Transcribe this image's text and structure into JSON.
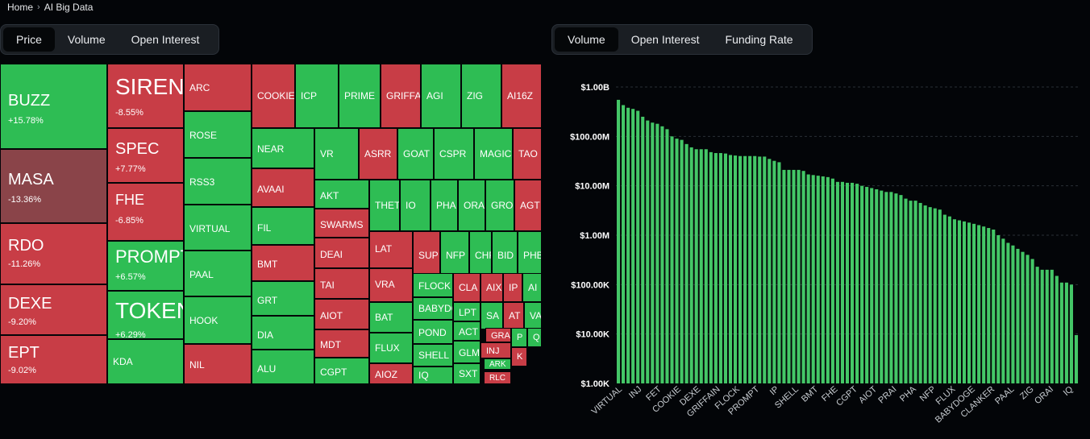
{
  "breadcrumb": {
    "home": "Home",
    "separator": "›",
    "current": "AI Big Data"
  },
  "heatmap_tabs": [
    "Price",
    "Volume",
    "Open Interest"
  ],
  "heatmap_active": 0,
  "chart_tabs": [
    "Volume",
    "Open Interest",
    "Funding Rate"
  ],
  "chart_active": 0,
  "colors": {
    "up": "#2ebd54",
    "down": "#c83d46",
    "down_strong": "#8a4449",
    "bar": "#44c767",
    "background": "#030508"
  },
  "heatmap_tiles": [
    {
      "symbol": "BUZZ",
      "change": "+15.78%"
    },
    {
      "symbol": "MASA",
      "change": "-13.36%"
    },
    {
      "symbol": "RDO",
      "change": "-11.26%"
    },
    {
      "symbol": "DEXE",
      "change": "-9.20%"
    },
    {
      "symbol": "EPT",
      "change": "-9.02%"
    },
    {
      "symbol": "SIREN",
      "change": "-8.55%"
    },
    {
      "symbol": "SPEC",
      "change": "+7.77%"
    },
    {
      "symbol": "FHE",
      "change": "-6.85%"
    },
    {
      "symbol": "PROMPT",
      "change": "+6.57%"
    },
    {
      "symbol": "TOKEN",
      "change": "+6.29%"
    },
    {
      "symbol": "KDA"
    },
    {
      "symbol": "ARC"
    },
    {
      "symbol": "ROSE"
    },
    {
      "symbol": "RSS3"
    },
    {
      "symbol": "VIRTUAL"
    },
    {
      "symbol": "PAAL"
    },
    {
      "symbol": "HOOK"
    },
    {
      "symbol": "NIL"
    },
    {
      "symbol": "COOKIE"
    },
    {
      "symbol": "ICP"
    },
    {
      "symbol": "PRIME"
    },
    {
      "symbol": "GRIFFAIN"
    },
    {
      "symbol": "AGI"
    },
    {
      "symbol": "ZIG"
    },
    {
      "symbol": "AI16Z"
    },
    {
      "symbol": "NEAR"
    },
    {
      "symbol": "AVAAI"
    },
    {
      "symbol": "FIL"
    },
    {
      "symbol": "BMT"
    },
    {
      "symbol": "GRT"
    },
    {
      "symbol": "DIA"
    },
    {
      "symbol": "ALU"
    },
    {
      "symbol": "VR"
    },
    {
      "symbol": "ASRR"
    },
    {
      "symbol": "GOAT"
    },
    {
      "symbol": "CSPR"
    },
    {
      "symbol": "MAGIC"
    },
    {
      "symbol": "TAO"
    },
    {
      "symbol": "AKT"
    },
    {
      "symbol": "SWARMS"
    },
    {
      "symbol": "DEAI"
    },
    {
      "symbol": "TAI"
    },
    {
      "symbol": "AIOT"
    },
    {
      "symbol": "MDT"
    },
    {
      "symbol": "CGPT"
    },
    {
      "symbol": "THETA"
    },
    {
      "symbol": "IO"
    },
    {
      "symbol": "PHA"
    },
    {
      "symbol": "ORAI"
    },
    {
      "symbol": "GRO"
    },
    {
      "symbol": "AGT"
    },
    {
      "symbol": "LAT"
    },
    {
      "symbol": "VRA"
    },
    {
      "symbol": "BAT"
    },
    {
      "symbol": "FLUX"
    },
    {
      "symbol": "AIOZ"
    },
    {
      "symbol": "SUP"
    },
    {
      "symbol": "NFP"
    },
    {
      "symbol": "CHR"
    },
    {
      "symbol": "BID"
    },
    {
      "symbol": "PHB"
    },
    {
      "symbol": "FLOCK"
    },
    {
      "symbol": "BABYDOGE"
    },
    {
      "symbol": "POND"
    },
    {
      "symbol": "SHELL"
    },
    {
      "symbol": "IQ"
    },
    {
      "symbol": "CLA"
    },
    {
      "symbol": "AIX"
    },
    {
      "symbol": "IP"
    },
    {
      "symbol": "AI"
    },
    {
      "symbol": "LPT"
    },
    {
      "symbol": "ACT"
    },
    {
      "symbol": "GLM"
    },
    {
      "symbol": "SXT"
    },
    {
      "symbol": "SA"
    },
    {
      "symbol": "AT"
    },
    {
      "symbol": "VA"
    },
    {
      "symbol": "GRA"
    },
    {
      "symbol": "INJ"
    },
    {
      "symbol": "ARK"
    },
    {
      "symbol": "RLC"
    },
    {
      "symbol": "P"
    },
    {
      "symbol": "Q"
    },
    {
      "symbol": "K"
    }
  ],
  "chart_data": {
    "type": "bar",
    "scale": "log",
    "ylim": [
      1000,
      1000000000
    ],
    "yticks": [
      "$1.00B",
      "$100.00M",
      "$10.00M",
      "$1.00M",
      "$100.00K",
      "$10.00K",
      "$1.00K"
    ],
    "xtick_labels": [
      "VIRTUAL",
      "INJ",
      "FET",
      "COOKIE",
      "DEXE",
      "GRIFFAIN",
      "FLOCK",
      "PROMPT",
      "IP",
      "SHELL",
      "BMT",
      "FHE",
      "CGPT",
      "AIOT",
      "PRAI",
      "PHA",
      "NFP",
      "FLUX",
      "BABYDOGE",
      "CLANKER",
      "PAAL",
      "ZIG",
      "ORAI",
      "IQ"
    ],
    "values": [
      550000000,
      430000000,
      380000000,
      360000000,
      330000000,
      250000000,
      210000000,
      190000000,
      180000000,
      160000000,
      140000000,
      100000000,
      90000000,
      85000000,
      70000000,
      60000000,
      55000000,
      55000000,
      55000000,
      48000000,
      46000000,
      46000000,
      45000000,
      42000000,
      41000000,
      40000000,
      40000000,
      40000000,
      40000000,
      39000000,
      39000000,
      35000000,
      32000000,
      30000000,
      21000000,
      21000000,
      21000000,
      21000000,
      20000000,
      17000000,
      16500000,
      16000000,
      15500000,
      15000000,
      14000000,
      12000000,
      12000000,
      11500000,
      11500000,
      11000000,
      10000000,
      9500000,
      9000000,
      8500000,
      8000000,
      7500000,
      7500000,
      7000000,
      6500000,
      5500000,
      5000000,
      5000000,
      4500000,
      4000000,
      3700000,
      3500000,
      3300000,
      2600000,
      2400000,
      2100000,
      2000000,
      1900000,
      1800000,
      1700000,
      1600000,
      1500000,
      1400000,
      1300000,
      1000000,
      850000,
      700000,
      620000,
      530000,
      460000,
      400000,
      330000,
      230000,
      200000,
      200000,
      200000,
      150000,
      110000,
      110000,
      100000,
      9500
    ]
  }
}
